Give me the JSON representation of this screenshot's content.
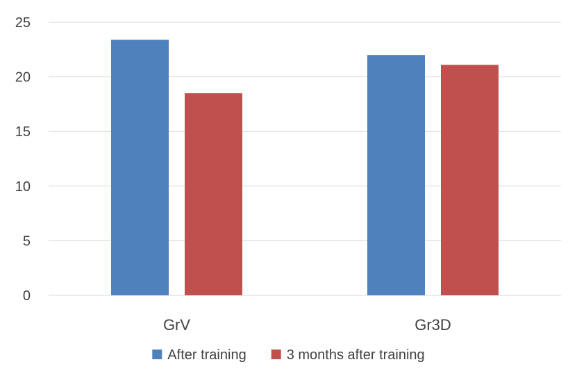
{
  "chart_data": {
    "type": "bar",
    "title": "",
    "xlabel": "",
    "ylabel": "",
    "categories": [
      "GrV",
      "Gr3D"
    ],
    "series": [
      {
        "name": "After training",
        "values": [
          23.4,
          22.0
        ],
        "color": "#4f81bd"
      },
      {
        "name": "3 months after training",
        "values": [
          18.5,
          21.1
        ],
        "color": "#c0504d"
      }
    ],
    "ylim": [
      0,
      25
    ],
    "yticks": [
      0,
      5,
      10,
      15,
      20,
      25
    ],
    "ytick_labels": [
      "0",
      "5",
      "10",
      "15",
      "20",
      "25"
    ],
    "grid": true,
    "legend_position": "bottom"
  }
}
